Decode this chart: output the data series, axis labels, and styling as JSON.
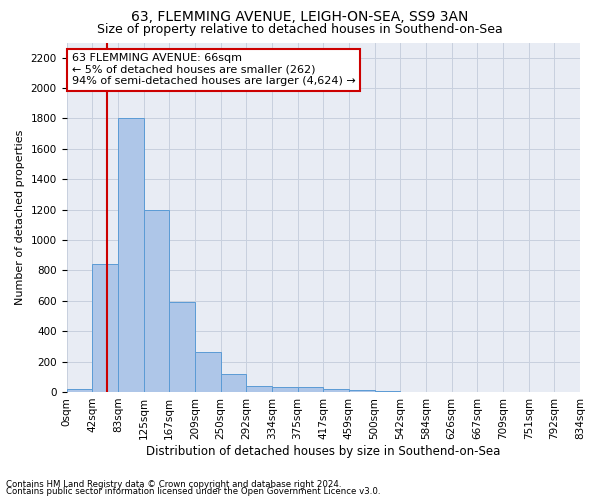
{
  "title1": "63, FLEMMING AVENUE, LEIGH-ON-SEA, SS9 3AN",
  "title2": "Size of property relative to detached houses in Southend-on-Sea",
  "xlabel": "Distribution of detached houses by size in Southend-on-Sea",
  "ylabel": "Number of detached properties",
  "footnote1": "Contains HM Land Registry data © Crown copyright and database right 2024.",
  "footnote2": "Contains public sector information licensed under the Open Government Licence v3.0.",
  "bin_labels": [
    "0sqm",
    "42sqm",
    "83sqm",
    "125sqm",
    "167sqm",
    "209sqm",
    "250sqm",
    "292sqm",
    "334sqm",
    "375sqm",
    "417sqm",
    "459sqm",
    "500sqm",
    "542sqm",
    "584sqm",
    "626sqm",
    "667sqm",
    "709sqm",
    "751sqm",
    "792sqm",
    "834sqm"
  ],
  "bar_values": [
    20,
    840,
    1800,
    1200,
    590,
    260,
    115,
    40,
    35,
    30,
    20,
    10,
    5,
    2,
    1,
    1,
    0,
    0,
    0,
    0
  ],
  "bar_color": "#aec6e8",
  "bar_edge_color": "#5b9bd5",
  "annotation_text": "63 FLEMMING AVENUE: 66sqm\n← 5% of detached houses are smaller (262)\n94% of semi-detached houses are larger (4,624) →",
  "annotation_box_color": "#ffffff",
  "annotation_box_edge": "#cc0000",
  "vline_color": "#cc0000",
  "ylim": [
    0,
    2300
  ],
  "yticks": [
    0,
    200,
    400,
    600,
    800,
    1000,
    1200,
    1400,
    1600,
    1800,
    2000,
    2200
  ],
  "grid_color": "#c8d0de",
  "bg_color": "#e8ecf4",
  "title1_fontsize": 10,
  "title2_fontsize": 9,
  "xlabel_fontsize": 8.5,
  "ylabel_fontsize": 8,
  "tick_fontsize": 7.5,
  "annotation_fontsize": 8
}
